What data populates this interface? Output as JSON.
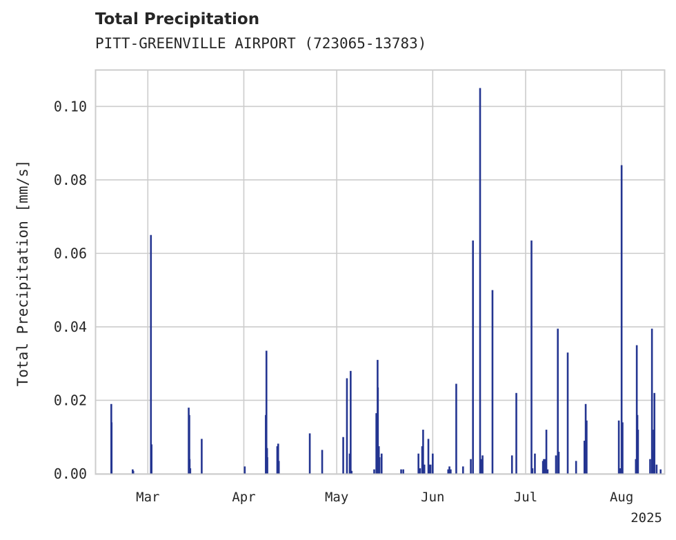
{
  "chart_data": {
    "type": "bar",
    "title": "Total Precipitation",
    "subtitle": "PITT-GREENVILLE AIRPORT (723065-13783)",
    "xlabel": "",
    "ylabel": "Total Precipitation [mm/s]",
    "year_label": "2025",
    "x_start_day": 43,
    "x_end_day": 227,
    "ylim": [
      0,
      0.11
    ],
    "y_ticks": [
      {
        "value": 0.0,
        "label": "0.00"
      },
      {
        "value": 0.02,
        "label": "0.02"
      },
      {
        "value": 0.04,
        "label": "0.04"
      },
      {
        "value": 0.06,
        "label": "0.06"
      },
      {
        "value": 0.08,
        "label": "0.08"
      },
      {
        "value": 0.1,
        "label": "0.10"
      }
    ],
    "x_ticks": [
      {
        "day": 60,
        "label": "Mar"
      },
      {
        "day": 91,
        "label": "Apr"
      },
      {
        "day": 121,
        "label": "May"
      },
      {
        "day": 152,
        "label": "Jun"
      },
      {
        "day": 182,
        "label": "Jul"
      },
      {
        "day": 213,
        "label": "Aug"
      }
    ],
    "series": [
      {
        "name": "Total Precipitation",
        "color": "#243591",
        "points": [
          [
            48.2,
            0.019
          ],
          [
            48.3,
            0.014
          ],
          [
            55.1,
            0.0012
          ],
          [
            55.3,
            0.0008
          ],
          [
            61.0,
            0.065
          ],
          [
            61.2,
            0.008
          ],
          [
            73.2,
            0.018
          ],
          [
            73.4,
            0.016
          ],
          [
            73.5,
            0.004
          ],
          [
            73.7,
            0.0015
          ],
          [
            77.4,
            0.0095
          ],
          [
            91.3,
            0.002
          ],
          [
            98.1,
            0.016
          ],
          [
            98.3,
            0.0335
          ],
          [
            98.5,
            0.007
          ],
          [
            98.6,
            0.0045
          ],
          [
            101.8,
            0.0075
          ],
          [
            102.1,
            0.0082
          ],
          [
            102.3,
            0.0035
          ],
          [
            112.3,
            0.011
          ],
          [
            116.3,
            0.0065
          ],
          [
            123.1,
            0.01
          ],
          [
            124.3,
            0.026
          ],
          [
            125.2,
            0.0055
          ],
          [
            125.5,
            0.028
          ],
          [
            125.8,
            0.0008
          ],
          [
            133.1,
            0.0012
          ],
          [
            133.8,
            0.0165
          ],
          [
            134.2,
            0.031
          ],
          [
            134.3,
            0.0235
          ],
          [
            134.6,
            0.0075
          ],
          [
            134.8,
            0.0045
          ],
          [
            135.5,
            0.0055
          ],
          [
            141.8,
            0.0012
          ],
          [
            142.5,
            0.0012
          ],
          [
            147.4,
            0.0055
          ],
          [
            147.9,
            0.0015
          ],
          [
            148.6,
            0.0075
          ],
          [
            148.9,
            0.012
          ],
          [
            149.3,
            0.0025
          ],
          [
            150.6,
            0.0095
          ],
          [
            150.9,
            0.0025
          ],
          [
            151.3,
            0.0025
          ],
          [
            152.0,
            0.0055
          ],
          [
            157.0,
            0.0012
          ],
          [
            157.4,
            0.002
          ],
          [
            157.8,
            0.0012
          ],
          [
            159.6,
            0.0245
          ],
          [
            161.8,
            0.002
          ],
          [
            164.3,
            0.004
          ],
          [
            165.0,
            0.0635
          ],
          [
            167.3,
            0.105
          ],
          [
            167.7,
            0.004
          ],
          [
            168.1,
            0.005
          ],
          [
            171.3,
            0.05
          ],
          [
            177.6,
            0.005
          ],
          [
            179.0,
            0.022
          ],
          [
            183.9,
            0.0635
          ],
          [
            184.2,
            0.0015
          ],
          [
            185.0,
            0.0055
          ],
          [
            187.6,
            0.0035
          ],
          [
            187.9,
            0.004
          ],
          [
            188.4,
            0.004
          ],
          [
            188.7,
            0.012
          ],
          [
            189.1,
            0.0012
          ],
          [
            191.8,
            0.005
          ],
          [
            192.4,
            0.0395
          ],
          [
            192.7,
            0.006
          ],
          [
            195.6,
            0.033
          ],
          [
            198.3,
            0.0035
          ],
          [
            201.0,
            0.009
          ],
          [
            201.4,
            0.019
          ],
          [
            201.7,
            0.0145
          ],
          [
            212.1,
            0.0145
          ],
          [
            212.6,
            0.0015
          ],
          [
            213.0,
            0.084
          ],
          [
            213.3,
            0.014
          ],
          [
            217.6,
            0.004
          ],
          [
            217.9,
            0.035
          ],
          [
            218.1,
            0.016
          ],
          [
            218.3,
            0.012
          ],
          [
            222.2,
            0.004
          ],
          [
            222.8,
            0.0395
          ],
          [
            223.1,
            0.0065
          ],
          [
            223.4,
            0.012
          ],
          [
            223.6,
            0.022
          ],
          [
            224.3,
            0.0025
          ],
          [
            225.6,
            0.0012
          ]
        ]
      }
    ]
  }
}
